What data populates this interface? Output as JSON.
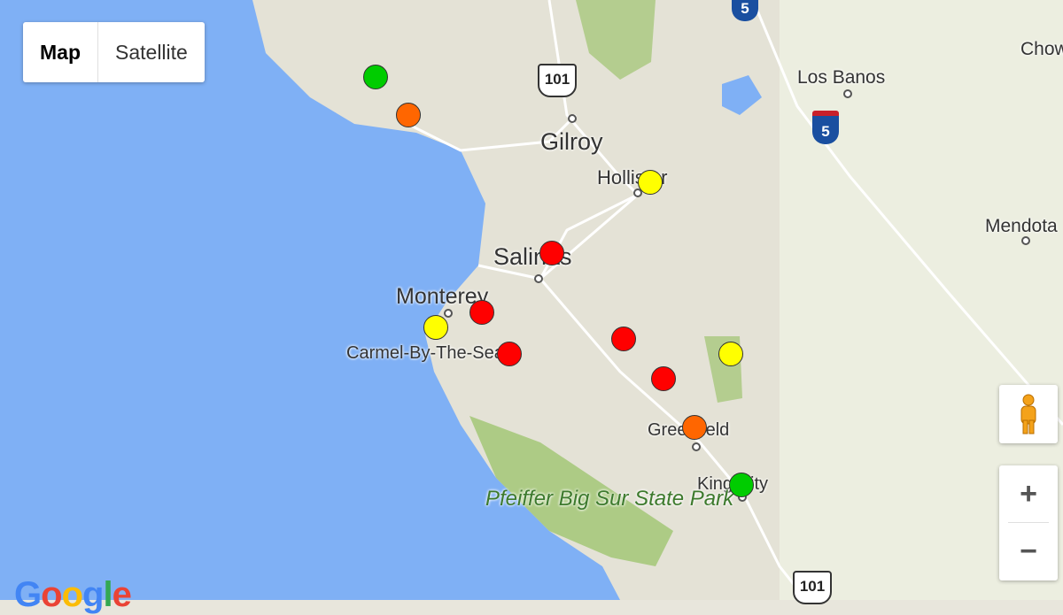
{
  "map_type_control": {
    "map_label": "Map",
    "satellite_label": "Satellite",
    "selected": "Map"
  },
  "places": {
    "gilroy": "Gilroy",
    "hollister": "Hollister",
    "salinas": "Salinas",
    "monterey": "Monterey",
    "carmel": "Carmel-By-The-Sea",
    "greenfield": "Greenfield",
    "king_city": "King City",
    "los_banos": "Los Banos",
    "mendota": "Mendota",
    "chowchilla": "Chow",
    "park": "Pfeiffer Big Sur State Park"
  },
  "highways": {
    "us101_north": "101",
    "us101_south": "101",
    "i5_north": "5",
    "i5_mid": "5"
  },
  "markers": [
    {
      "status_color": "#00cc00"
    },
    {
      "status_color": "#ff6600"
    },
    {
      "status_color": "#ffff00"
    },
    {
      "status_color": "#ff0000"
    },
    {
      "status_color": "#ff0000"
    },
    {
      "status_color": "#ffff00"
    },
    {
      "status_color": "#ff0000"
    },
    {
      "status_color": "#ff0000"
    },
    {
      "status_color": "#ffff00"
    },
    {
      "status_color": "#ff0000"
    },
    {
      "status_color": "#ff6600"
    },
    {
      "status_color": "#00cc00"
    }
  ],
  "controls": {
    "zoom_in": "+",
    "zoom_out": "−",
    "pegman_icon": "pegman-icon"
  },
  "logo": "Google",
  "colors": {
    "water": "#7fb0f5",
    "land": "#e6e4d8",
    "park": "#9fc571"
  }
}
